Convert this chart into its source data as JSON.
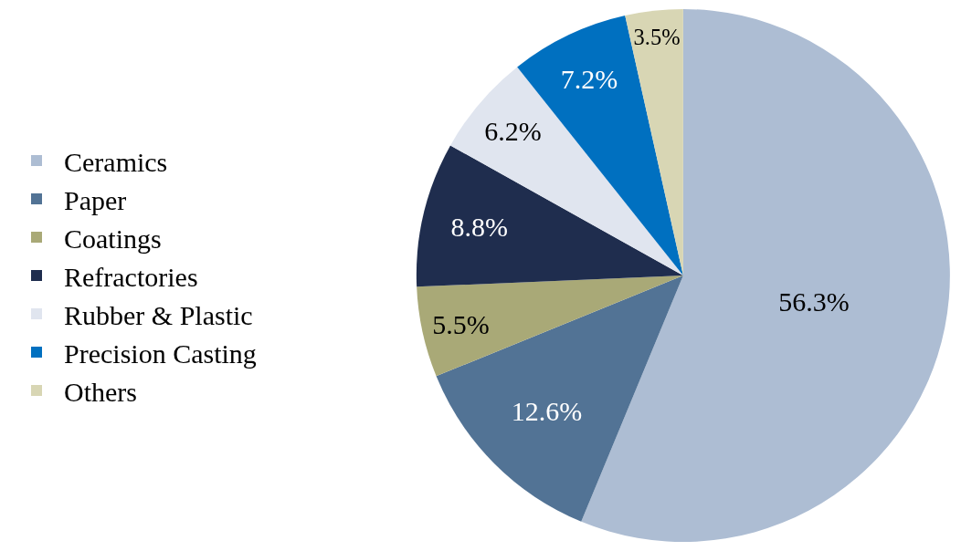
{
  "chart_data": {
    "type": "pie",
    "categories": [
      "Ceramics",
      "Paper",
      "Coatings",
      "Refractories",
      "Rubber & Plastic",
      "Precision Casting",
      "Others"
    ],
    "values": [
      56.3,
      12.6,
      5.5,
      8.8,
      6.2,
      7.2,
      3.5
    ],
    "colors": [
      "#adbdd3",
      "#527395",
      "#a9a977",
      "#1f2d4e",
      "#e0e5ef",
      "#0070c0",
      "#d8d6b4"
    ],
    "value_labels": [
      "56.3%",
      "12.6%",
      "5.5%",
      "8.8%",
      "6.2%",
      "7.2%",
      "3.5%"
    ],
    "legend": "left"
  }
}
